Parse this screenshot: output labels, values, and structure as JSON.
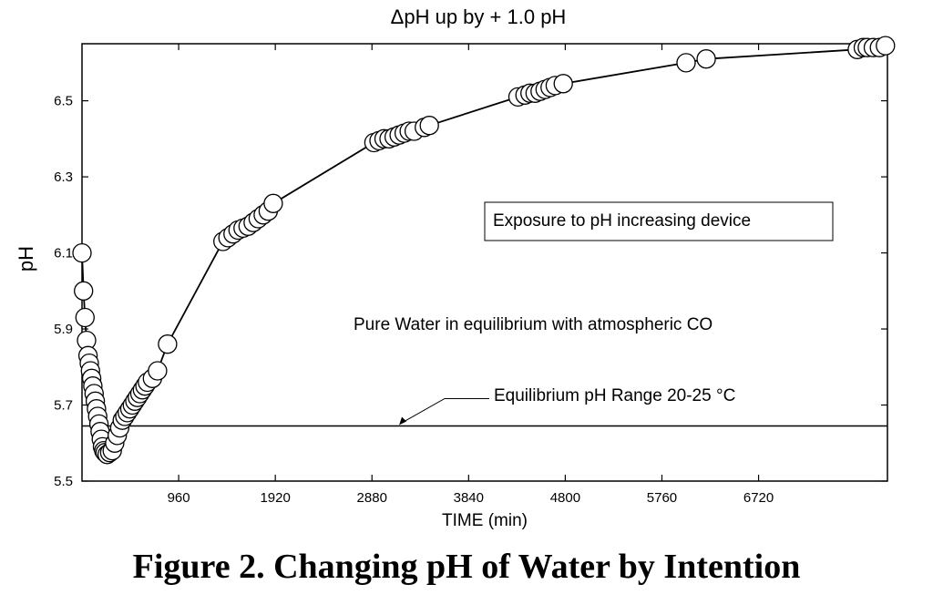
{
  "chart_data": {
    "type": "scatter",
    "title": "ΔpH  up by + 1.0 pH",
    "xlabel": "TIME (min)",
    "ylabel": "pH",
    "xlim": [
      0,
      8000
    ],
    "ylim": [
      5.5,
      6.65
    ],
    "xticks": [
      "960",
      "1920",
      "2880",
      "3840",
      "4800",
      "5760",
      "6720"
    ],
    "yticks": [
      "5.5",
      "5.7",
      "5.9",
      "6.1",
      "6.3",
      "6.5"
    ],
    "series": [
      {
        "name": "pH",
        "connected": true,
        "points": [
          [
            0,
            6.1
          ],
          [
            15,
            6.0
          ],
          [
            30,
            5.93
          ],
          [
            45,
            5.87
          ],
          [
            60,
            5.83
          ],
          [
            72,
            5.81
          ],
          [
            84,
            5.79
          ],
          [
            96,
            5.77
          ],
          [
            108,
            5.75
          ],
          [
            120,
            5.73
          ],
          [
            132,
            5.71
          ],
          [
            144,
            5.69
          ],
          [
            156,
            5.67
          ],
          [
            168,
            5.65
          ],
          [
            180,
            5.63
          ],
          [
            192,
            5.61
          ],
          [
            204,
            5.59
          ],
          [
            216,
            5.58
          ],
          [
            230,
            5.575
          ],
          [
            250,
            5.57
          ],
          [
            275,
            5.575
          ],
          [
            300,
            5.58
          ],
          [
            325,
            5.6
          ],
          [
            350,
            5.62
          ],
          [
            375,
            5.64
          ],
          [
            400,
            5.66
          ],
          [
            425,
            5.67
          ],
          [
            450,
            5.68
          ],
          [
            475,
            5.69
          ],
          [
            500,
            5.7
          ],
          [
            525,
            5.71
          ],
          [
            550,
            5.72
          ],
          [
            575,
            5.73
          ],
          [
            600,
            5.74
          ],
          [
            625,
            5.75
          ],
          [
            650,
            5.76
          ],
          [
            700,
            5.77
          ],
          [
            750,
            5.79
          ],
          [
            850,
            5.86
          ],
          [
            1400,
            6.13
          ],
          [
            1450,
            6.14
          ],
          [
            1500,
            6.15
          ],
          [
            1550,
            6.16
          ],
          [
            1600,
            6.165
          ],
          [
            1650,
            6.17
          ],
          [
            1700,
            6.18
          ],
          [
            1750,
            6.19
          ],
          [
            1800,
            6.2
          ],
          [
            1850,
            6.21
          ],
          [
            1900,
            6.23
          ],
          [
            2900,
            6.39
          ],
          [
            2950,
            6.395
          ],
          [
            3000,
            6.4
          ],
          [
            3050,
            6.4
          ],
          [
            3100,
            6.405
          ],
          [
            3150,
            6.41
          ],
          [
            3200,
            6.415
          ],
          [
            3250,
            6.42
          ],
          [
            3300,
            6.42
          ],
          [
            3400,
            6.43
          ],
          [
            3450,
            6.435
          ],
          [
            4330,
            6.51
          ],
          [
            4400,
            6.515
          ],
          [
            4450,
            6.52
          ],
          [
            4500,
            6.52
          ],
          [
            4550,
            6.525
          ],
          [
            4600,
            6.53
          ],
          [
            4650,
            6.535
          ],
          [
            4700,
            6.54
          ],
          [
            4780,
            6.545
          ],
          [
            6000,
            6.6
          ],
          [
            6200,
            6.61
          ],
          [
            7700,
            6.635
          ],
          [
            7760,
            6.64
          ],
          [
            7800,
            6.64
          ],
          [
            7860,
            6.64
          ],
          [
            7920,
            6.64
          ],
          [
            7980,
            6.645
          ]
        ]
      }
    ],
    "reference_line": {
      "label": "Equilibrium pH Range 20-25 °C",
      "y": 5.645,
      "arrow_x": 3150
    },
    "annotations": [
      {
        "text": "Exposure to pH increasing device",
        "boxed": true,
        "position": "upper-right"
      },
      {
        "text": "Pure Water in equilibrium with atmospheric CO",
        "boxed": false,
        "position": "middle-right"
      }
    ]
  },
  "figure_caption": "Figure 2. Changing pH of Water by Intention"
}
